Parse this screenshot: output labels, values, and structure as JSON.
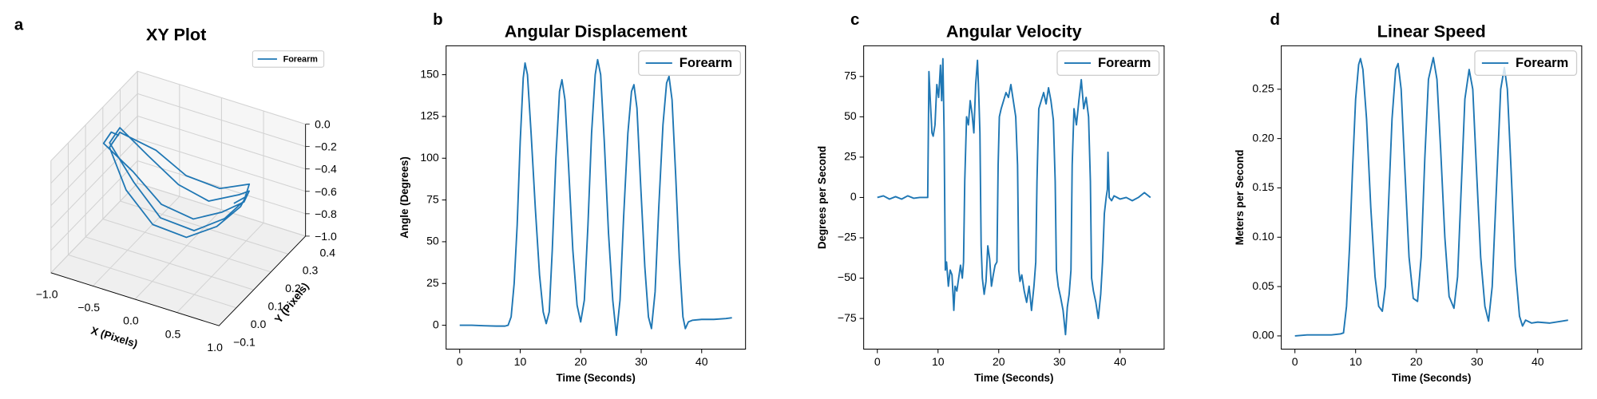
{
  "chart_data": [
    {
      "type": "line3d",
      "panel_label": "a",
      "title": "XY Plot",
      "xlabel": "X (Pixels)",
      "ylabel": "Y (Pixels)",
      "xlim": [
        -1,
        1
      ],
      "ylim": [
        -0.1,
        0.4
      ],
      "zlim": [
        -1,
        0
      ],
      "xticks": [
        {
          "value": -1,
          "label": "−1.0"
        },
        {
          "value": -0.5,
          "label": "−0.5"
        },
        {
          "value": 0,
          "label": "0.0"
        },
        0.5,
        {
          "value": 1,
          "label": "1.0"
        }
      ],
      "yticks": [
        {
          "value": -0.1,
          "label": "−0.1"
        },
        {
          "value": 0,
          "label": "0.0"
        },
        0.1,
        0.2,
        0.3,
        0.4
      ],
      "zticks": [
        {
          "value": 0,
          "label": "0.0"
        },
        {
          "value": -0.2,
          "label": "−0.2"
        },
        {
          "value": -0.4,
          "label": "−0.4"
        },
        {
          "value": -0.6,
          "label": "−0.6"
        },
        {
          "value": -0.8,
          "label": "−0.8"
        },
        {
          "value": -1,
          "label": "−1.0"
        }
      ],
      "grid": true,
      "legend": "upper right",
      "series": [
        {
          "name": "Forearm",
          "color": "#1f77b4",
          "x": [
            -0.85,
            -0.9,
            -0.95,
            -0.6,
            -0.2,
            0.2,
            0.5,
            0.68,
            0.7,
            0.62,
            0.3,
            -0.1,
            -0.5,
            -0.88,
            -0.92,
            -0.55,
            -0.15,
            0.25,
            0.55,
            0.7,
            0.66,
            0.35,
            -0.05,
            -0.45,
            -0.86,
            -0.9,
            -0.6,
            -0.2,
            0.2,
            0.5,
            0.68,
            0.7,
            0.6
          ],
          "y": [
            0.22,
            0.2,
            0.18,
            0.18,
            0.15,
            0.14,
            0.16,
            0.2,
            0.22,
            0.2,
            0.18,
            0.2,
            0.22,
            0.24,
            0.2,
            0.16,
            0.12,
            0.12,
            0.15,
            0.19,
            0.24,
            0.22,
            0.22,
            0.24,
            0.23,
            0.19,
            0.14,
            0.1,
            0.1,
            0.13,
            0.18,
            0.2,
            0.18
          ],
          "z": [
            -0.25,
            -0.2,
            -0.28,
            -0.45,
            -0.6,
            -0.62,
            -0.52,
            -0.45,
            -0.38,
            -0.4,
            -0.5,
            -0.48,
            -0.35,
            -0.22,
            -0.3,
            -0.5,
            -0.66,
            -0.68,
            -0.55,
            -0.42,
            -0.36,
            -0.44,
            -0.42,
            -0.32,
            -0.24,
            -0.32,
            -0.55,
            -0.7,
            -0.72,
            -0.6,
            -0.46,
            -0.4,
            -0.45
          ]
        }
      ]
    },
    {
      "type": "line",
      "panel_label": "b",
      "title": "Angular Displacement",
      "xlabel": "Time (Seconds)",
      "ylabel": "Angle (Degrees)",
      "xlim": [
        -2.25,
        47.25
      ],
      "ylim": [
        -14.3,
        167.3
      ],
      "xticks": [
        0,
        10,
        20,
        30,
        40
      ],
      "yticks": [
        0,
        25,
        50,
        75,
        100,
        125,
        150
      ],
      "legend": "upper right",
      "x": [
        0,
        2,
        4,
        6,
        7.5,
        8,
        8.5,
        9,
        9.5,
        10,
        10.5,
        10.8,
        11.2,
        11.8,
        12.5,
        13.2,
        13.8,
        14.3,
        14.8,
        15.3,
        15.9,
        16.5,
        16.9,
        17.4,
        18,
        18.7,
        19.4,
        20,
        20.6,
        21.2,
        21.8,
        22.4,
        22.8,
        23.3,
        23.9,
        24.6,
        25.3,
        25.9,
        26.5,
        27.1,
        27.8,
        28.4,
        28.8,
        29.3,
        29.9,
        30.6,
        31.2,
        31.7,
        32.3,
        32.9,
        33.6,
        34.2,
        34.6,
        35.1,
        35.7,
        36.3,
        36.9,
        37.3,
        37.8,
        38.5,
        40,
        42,
        44,
        45
      ],
      "series": [
        {
          "name": "Forearm",
          "color": "#1f77b4",
          "values": [
            0,
            0,
            -0.3,
            -0.5,
            -0.5,
            0,
            5,
            25,
            60,
            110,
            148,
            157,
            150,
            115,
            70,
            30,
            8,
            1,
            8,
            45,
            100,
            140,
            147,
            135,
            95,
            45,
            12,
            2,
            15,
            60,
            115,
            150,
            159,
            150,
            110,
            55,
            15,
            -6,
            15,
            65,
            115,
            140,
            144,
            130,
            85,
            35,
            5,
            -2,
            20,
            70,
            120,
            145,
            149,
            135,
            90,
            40,
            5,
            -2,
            2,
            3,
            3.5,
            3.5,
            4,
            4.5
          ]
        }
      ]
    },
    {
      "type": "line",
      "panel_label": "c",
      "title": "Angular Velocity",
      "xlabel": "Time (Seconds)",
      "ylabel": "Degrees per Second",
      "xlim": [
        -2.25,
        47.25
      ],
      "ylim": [
        -94,
        94
      ],
      "xticks": [
        0,
        10,
        20,
        30,
        40
      ],
      "yticks": [
        {
          "value": -75,
          "label": "−75"
        },
        {
          "value": -50,
          "label": "−50"
        },
        {
          "value": -25,
          "label": "−25"
        },
        0,
        25,
        50,
        75
      ],
      "legend": "upper right",
      "x": [
        0,
        1,
        2,
        3,
        4,
        5,
        6,
        7,
        8,
        8.3,
        8.5,
        8.7,
        9.0,
        9.2,
        9.5,
        9.8,
        10.1,
        10.4,
        10.6,
        10.8,
        11.0,
        11.2,
        11.4,
        11.7,
        12.0,
        12.3,
        12.6,
        12.8,
        13.1,
        13.4,
        13.7,
        14.0,
        14.2,
        14.4,
        14.7,
        15.0,
        15.3,
        15.6,
        15.9,
        16.2,
        16.5,
        16.7,
        16.9,
        17.1,
        17.3,
        17.6,
        17.9,
        18.2,
        18.5,
        18.8,
        19.1,
        19.4,
        19.7,
        19.9,
        20.1,
        20.4,
        20.8,
        21.2,
        21.6,
        22.0,
        22.4,
        22.8,
        23.1,
        23.3,
        23.5,
        23.8,
        24.2,
        24.6,
        25.0,
        25.4,
        25.8,
        26.1,
        26.3,
        26.6,
        27.0,
        27.4,
        27.8,
        28.2,
        28.6,
        29.0,
        29.3,
        29.5,
        29.8,
        30.2,
        30.6,
        31.0,
        31.3,
        31.6,
        31.9,
        32.1,
        32.4,
        32.8,
        33.2,
        33.6,
        34.0,
        34.4,
        34.8,
        35.1,
        35.3,
        35.6,
        36.0,
        36.4,
        36.8,
        37.1,
        37.4,
        37.7,
        37.9,
        38.0,
        38.2,
        38.6,
        39,
        40,
        41,
        42,
        43,
        44,
        45
      ],
      "series": [
        {
          "name": "Forearm",
          "color": "#1f77b4",
          "values": [
            0,
            1,
            -1,
            0.5,
            -1,
            1,
            -0.5,
            0,
            0,
            0,
            78,
            62,
            40,
            38,
            45,
            70,
            62,
            82,
            60,
            86,
            40,
            -45,
            -40,
            -55,
            -45,
            -48,
            -70,
            -55,
            -58,
            -50,
            -42,
            -50,
            -40,
            10,
            50,
            45,
            60,
            52,
            40,
            70,
            85,
            65,
            40,
            -30,
            -50,
            -60,
            -52,
            -30,
            -38,
            -55,
            -48,
            -42,
            -40,
            20,
            50,
            55,
            60,
            65,
            62,
            70,
            60,
            50,
            20,
            -45,
            -52,
            -48,
            -58,
            -65,
            -55,
            -70,
            -55,
            -40,
            10,
            55,
            60,
            65,
            58,
            68,
            60,
            48,
            10,
            -45,
            -55,
            -62,
            -70,
            -85,
            -68,
            -60,
            -45,
            20,
            55,
            45,
            60,
            73,
            55,
            62,
            50,
            10,
            -50,
            -58,
            -65,
            -75,
            -60,
            -40,
            -10,
            0,
            5,
            28,
            0,
            -2,
            1,
            -1,
            0,
            -2,
            0,
            3,
            0
          ]
        }
      ]
    },
    {
      "type": "line",
      "panel_label": "d",
      "title": "Linear Speed",
      "xlabel": "Time (Seconds)",
      "ylabel": "Meters per Second",
      "xlim": [
        -2.25,
        47.25
      ],
      "ylim": [
        -0.0134,
        0.294
      ],
      "xticks": [
        0,
        10,
        20,
        30,
        40
      ],
      "yticks": [
        {
          "value": 0,
          "label": "0.00"
        },
        0.05,
        {
          "value": 0.1,
          "label": "0.10"
        },
        0.15,
        {
          "value": 0.2,
          "label": "0.20"
        },
        0.25
      ],
      "legend": "upper right",
      "x": [
        0,
        2,
        4,
        6,
        7.5,
        8,
        8.5,
        9,
        9.5,
        10,
        10.5,
        10.8,
        11.2,
        11.8,
        12.5,
        13.2,
        13.8,
        14.4,
        14.9,
        15.4,
        16,
        16.6,
        17,
        17.5,
        18.1,
        18.8,
        19.5,
        20.2,
        20.8,
        21.4,
        22,
        22.8,
        23.4,
        24,
        24.7,
        25.4,
        26.2,
        26.8,
        27.4,
        28,
        28.7,
        29.3,
        29.9,
        30.6,
        31.3,
        31.9,
        32.5,
        33.2,
        33.9,
        34.5,
        35,
        35.6,
        36.3,
        37,
        37.5,
        38,
        39,
        40,
        42,
        44,
        45
      ],
      "series": [
        {
          "name": "Forearm",
          "color": "#1f77b4",
          "values": [
            0,
            0.001,
            0.001,
            0.001,
            0.002,
            0.003,
            0.03,
            0.09,
            0.17,
            0.24,
            0.275,
            0.281,
            0.27,
            0.22,
            0.13,
            0.06,
            0.03,
            0.025,
            0.05,
            0.13,
            0.22,
            0.27,
            0.276,
            0.25,
            0.17,
            0.08,
            0.038,
            0.035,
            0.08,
            0.18,
            0.26,
            0.282,
            0.26,
            0.19,
            0.1,
            0.04,
            0.028,
            0.06,
            0.15,
            0.24,
            0.27,
            0.25,
            0.17,
            0.08,
            0.03,
            0.015,
            0.05,
            0.15,
            0.25,
            0.272,
            0.25,
            0.17,
            0.07,
            0.02,
            0.01,
            0.016,
            0.013,
            0.014,
            0.013,
            0.015,
            0.016
          ]
        }
      ]
    }
  ]
}
